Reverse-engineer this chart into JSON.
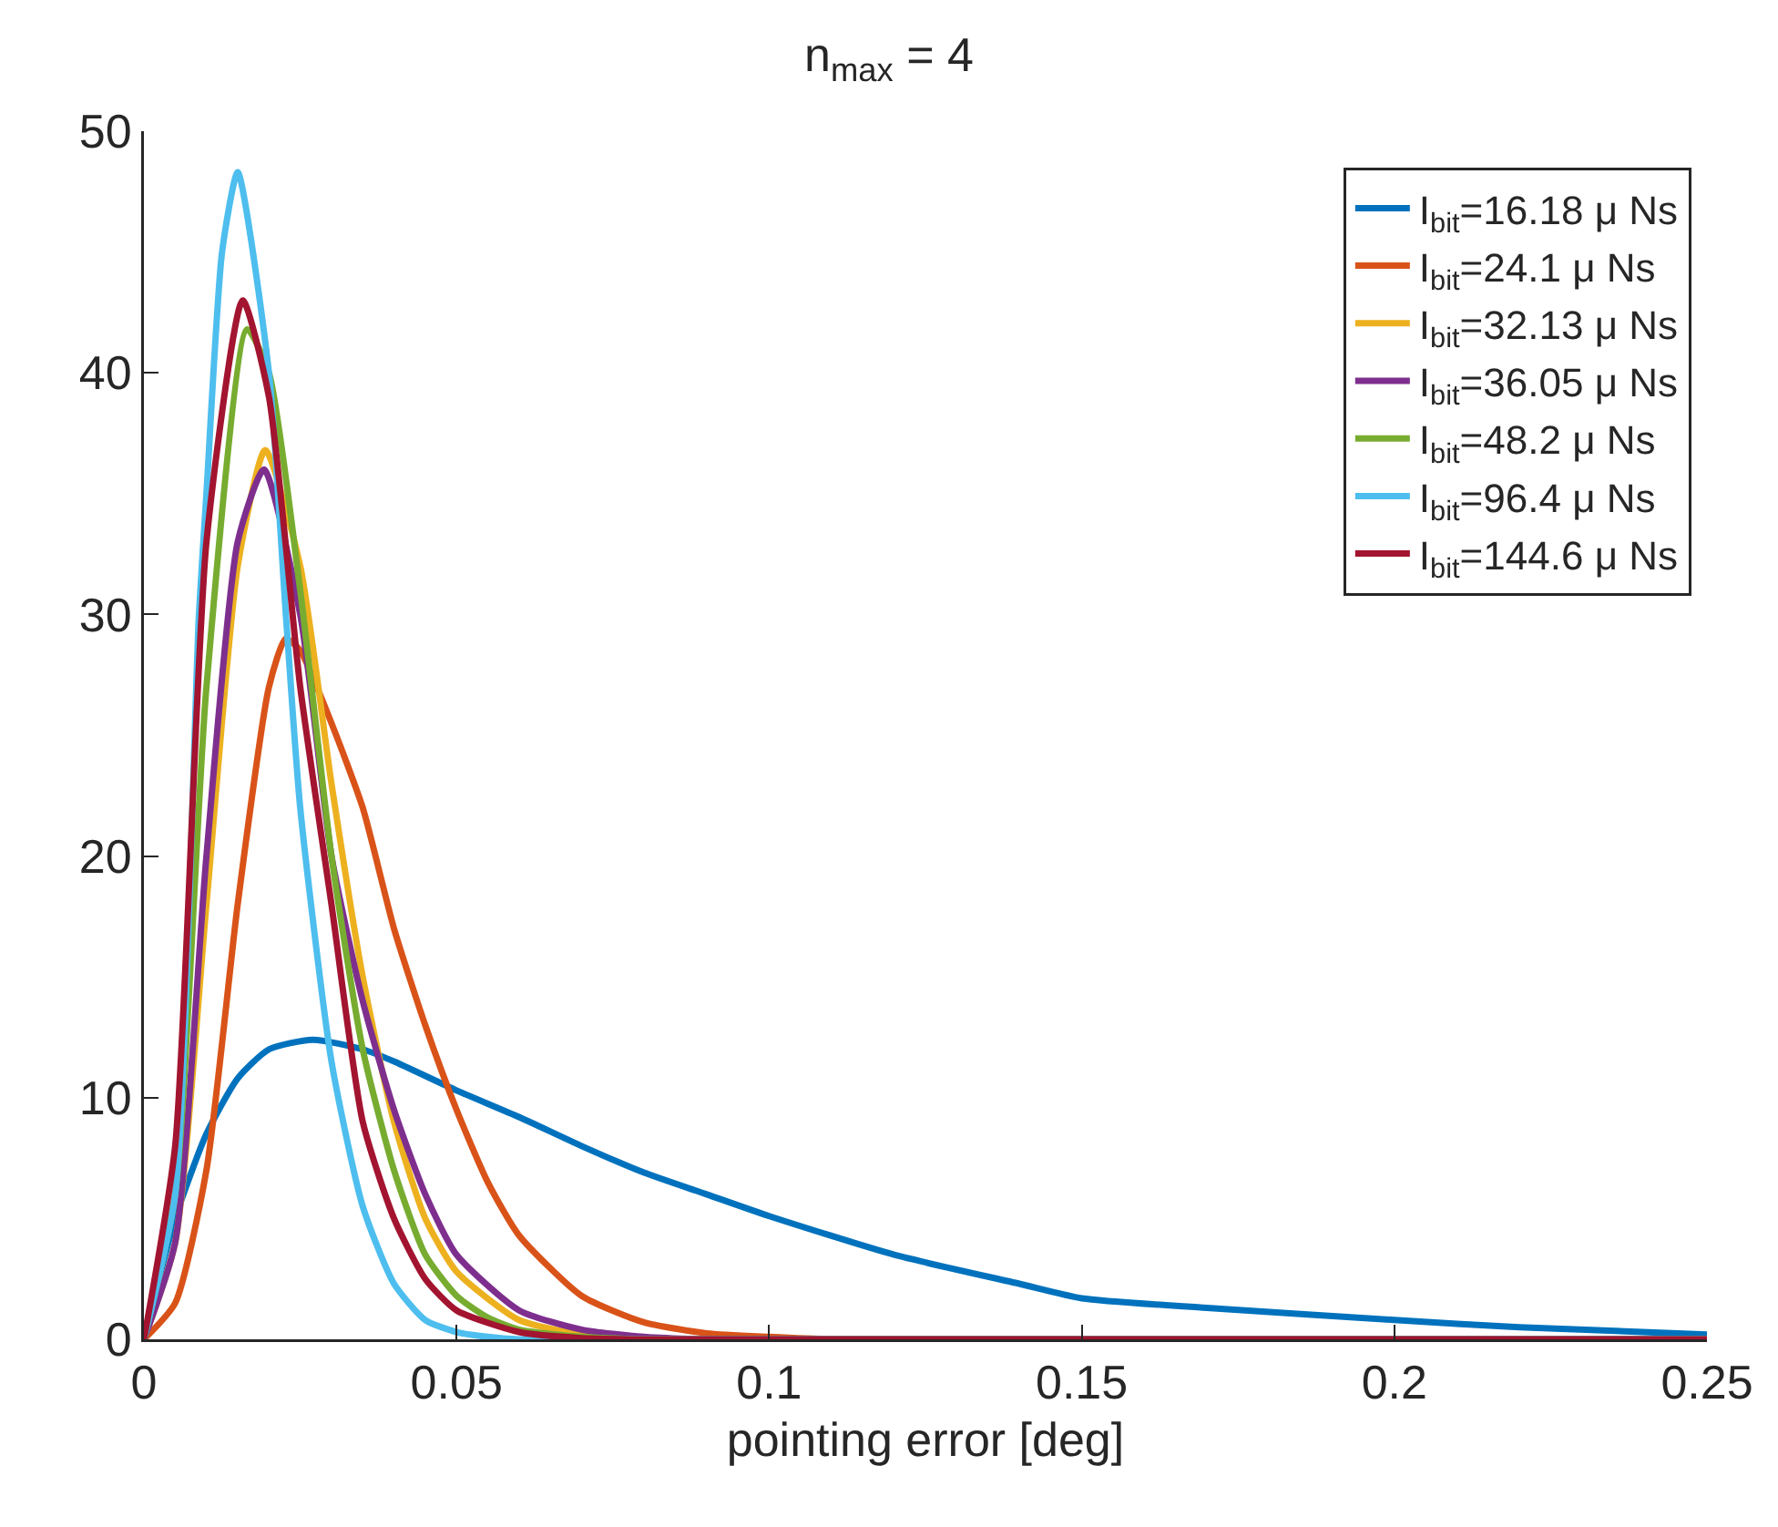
{
  "chart_data": {
    "type": "line",
    "title": "n$_{max}$ = 4",
    "xlabel": "pointing error [deg]",
    "xlim": [
      0,
      0.25
    ],
    "xticks": [
      0,
      0.05,
      0.1,
      0.15,
      0.2,
      0.25
    ],
    "ylim": [
      0,
      50
    ],
    "yticks": [
      0,
      10,
      20,
      30,
      40,
      50
    ],
    "grid": false,
    "legend": "top right",
    "marker": "none",
    "line_style": "solid",
    "series": [
      {
        "name": "I$_{bit}$=16.18 μ Ns",
        "color": "#0072bd",
        "x": [
          0,
          0.005,
          0.01,
          0.015,
          0.02,
          0.027,
          0.035,
          0.04,
          0.05,
          0.06,
          0.07,
          0.08,
          0.09,
          0.1,
          0.12,
          0.14,
          0.15,
          0.17,
          0.2,
          0.22,
          0.25
        ],
        "values": [
          0,
          5,
          8.5,
          10.8,
          12,
          12.4,
          12,
          11.5,
          10.3,
          9.2,
          8,
          6.9,
          6,
          5.1,
          3.5,
          2.3,
          1.7,
          1.3,
          0.8,
          0.5,
          0.2
        ]
      },
      {
        "name": "I$_{bit}$=24.1 μ Ns",
        "color": "#d95319",
        "x": [
          0,
          0.005,
          0.01,
          0.015,
          0.02,
          0.0227,
          0.025,
          0.03,
          0.035,
          0.04,
          0.045,
          0.05,
          0.055,
          0.06,
          0.07,
          0.08,
          0.09,
          0.1,
          0.11,
          0.25
        ],
        "values": [
          0,
          1.5,
          7,
          18,
          27,
          29,
          28.5,
          25.5,
          22,
          17,
          13,
          9.5,
          6.5,
          4.3,
          1.8,
          0.7,
          0.25,
          0.1,
          0,
          0
        ]
      },
      {
        "name": "I$_{bit}$=32.13 μ Ns",
        "color": "#edb120",
        "x": [
          0,
          0.005,
          0.01,
          0.015,
          0.0194,
          0.025,
          0.03,
          0.035,
          0.04,
          0.045,
          0.05,
          0.06,
          0.07,
          0.08,
          0.25
        ],
        "values": [
          0,
          4,
          18,
          32,
          36.8,
          32,
          23,
          15,
          9,
          5,
          2.8,
          0.8,
          0.2,
          0,
          0
        ]
      },
      {
        "name": "I$_{bit}$=36.05 μ Ns",
        "color": "#7e2f8e",
        "x": [
          0,
          0.005,
          0.01,
          0.015,
          0.0192,
          0.025,
          0.03,
          0.035,
          0.04,
          0.045,
          0.05,
          0.06,
          0.07,
          0.08,
          0.09,
          0.25
        ],
        "values": [
          0,
          4,
          20,
          33,
          36,
          30,
          20,
          14,
          9.5,
          6,
          3.5,
          1.2,
          0.4,
          0.1,
          0,
          0
        ]
      },
      {
        "name": "I$_{bit}$=48.2 μ Ns",
        "color": "#77ac30",
        "x": [
          0,
          0.005,
          0.01,
          0.0165,
          0.02,
          0.025,
          0.03,
          0.035,
          0.04,
          0.045,
          0.05,
          0.055,
          0.06,
          0.07,
          0.08,
          0.25
        ],
        "values": [
          0,
          6,
          27,
          41.8,
          40,
          31,
          20,
          12,
          7,
          3.5,
          1.8,
          0.9,
          0.4,
          0.1,
          0,
          0
        ]
      },
      {
        "name": "I$_{bit}$=96.4 μ Ns",
        "color": "#4dbeee",
        "x": [
          0,
          0.005,
          0.0088,
          0.01,
          0.0125,
          0.015,
          0.02,
          0.0227,
          0.025,
          0.03,
          0.035,
          0.04,
          0.045,
          0.05,
          0.055,
          0.06,
          0.25
        ],
        "values": [
          0,
          6,
          30,
          35,
          45,
          48.3,
          40,
          30,
          22,
          11.5,
          5.5,
          2.3,
          0.8,
          0.3,
          0.1,
          0,
          0
        ]
      },
      {
        "name": "I$_{bit}$=144.6 μ Ns",
        "color": "#a2142f",
        "x": [
          0,
          0.005,
          0.01,
          0.0158,
          0.02,
          0.025,
          0.03,
          0.035,
          0.04,
          0.045,
          0.05,
          0.06,
          0.07,
          0.08,
          0.25
        ],
        "values": [
          0,
          8,
          33,
          43,
          39,
          27,
          18,
          9,
          5,
          2.5,
          1.2,
          0.3,
          0.05,
          0,
          0
        ]
      }
    ]
  }
}
